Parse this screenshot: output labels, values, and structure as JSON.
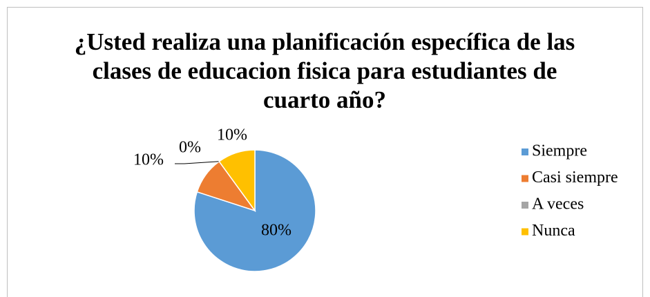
{
  "chart_data": {
    "type": "pie",
    "title": "¿Usted realiza una planificación específica de las clases de educacion fisica  para estudiantes de cuarto año?",
    "categories": [
      "Siempre",
      "Casi siempre",
      "A veces",
      "Nunca"
    ],
    "values": [
      80,
      10,
      0,
      10
    ],
    "value_labels": [
      "80%",
      "10%",
      "0%",
      "10%"
    ],
    "colors": [
      "#5b9bd5",
      "#ed7d31",
      "#a5a5a5",
      "#ffc000"
    ],
    "legend": "right"
  }
}
